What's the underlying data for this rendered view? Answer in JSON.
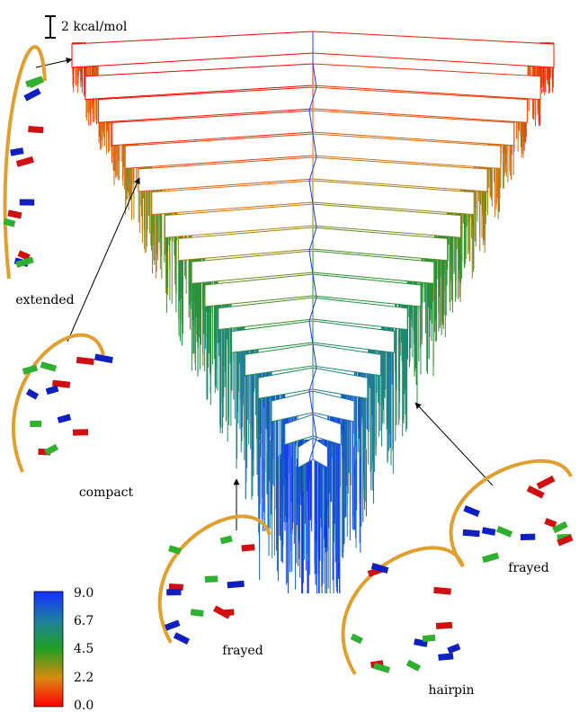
{
  "scale_bar": {
    "label": "2 kcal/mol"
  },
  "structures": [
    {
      "label": "extended"
    },
    {
      "label": "compact"
    },
    {
      "label": "frayed"
    },
    {
      "label": "hairpin"
    },
    {
      "label": "frayed"
    }
  ],
  "colorbar": {
    "ticks": [
      "9.0",
      "6.7",
      "4.5",
      "2.2",
      "0.0"
    ]
  }
}
